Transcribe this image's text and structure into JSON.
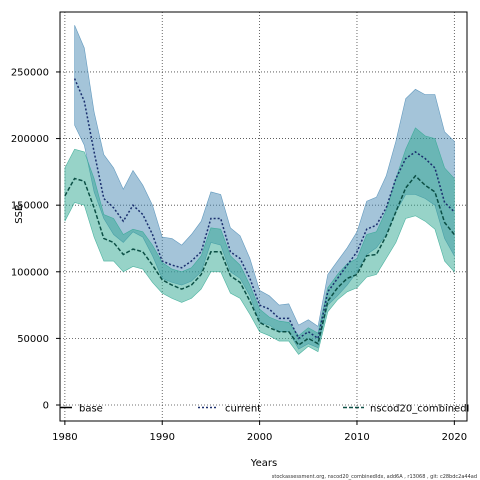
{
  "chart_data": {
    "type": "line",
    "title": "",
    "xlabel": "Years",
    "ylabel": "SSB",
    "xlim": [
      1979.5,
      2021.3
    ],
    "ylim": [
      -12000,
      295000
    ],
    "x_ticks": [
      1980,
      1990,
      2000,
      2010,
      2020
    ],
    "y_ticks": [
      0,
      50000,
      100000,
      150000,
      200000,
      250000
    ],
    "grid": true,
    "legend_position": "bottom",
    "colors": {
      "base": "#000000",
      "current": "#1a2f6e",
      "nscod20_combined": "#0b4f45",
      "current_band": "#4a8ab4",
      "combined_band": "#2fa891"
    },
    "series": [
      {
        "name": "base",
        "style": "solid",
        "x": [
          1980
        ],
        "values": [
          0
        ],
        "lower": [],
        "upper": []
      },
      {
        "name": "current",
        "style": "dotted",
        "x": [
          1981,
          1982,
          1983,
          1984,
          1985,
          1986,
          1987,
          1988,
          1989,
          1990,
          1991,
          1992,
          1993,
          1994,
          1995,
          1996,
          1997,
          1998,
          1999,
          2000,
          2001,
          2002,
          2003,
          2004,
          2005,
          2006,
          2007,
          2008,
          2009,
          2010,
          2011,
          2012,
          2013,
          2014,
          2015,
          2016,
          2017,
          2018,
          2019,
          2020
        ],
        "values": [
          245000,
          228000,
          190000,
          155000,
          148000,
          138000,
          150000,
          143000,
          128000,
          108000,
          105000,
          103000,
          108000,
          115000,
          140000,
          140000,
          115000,
          110000,
          95000,
          75000,
          72000,
          65000,
          65000,
          50000,
          55000,
          50000,
          85000,
          95000,
          105000,
          115000,
          132000,
          135000,
          148000,
          170000,
          185000,
          190000,
          185000,
          178000,
          152000,
          145000
        ],
        "lower": [
          210000,
          195000,
          160000,
          140000,
          128000,
          122000,
          130000,
          126000,
          112000,
          95000,
          92000,
          90000,
          93000,
          100000,
          122000,
          120000,
          100000,
          95000,
          82000,
          62000,
          60000,
          55000,
          55000,
          42000,
          46000,
          43000,
          75000,
          82000,
          90000,
          100000,
          113000,
          118000,
          128000,
          145000,
          158000,
          158000,
          155000,
          150000,
          125000,
          112000
        ],
        "upper": [
          285000,
          268000,
          220000,
          188000,
          178000,
          162000,
          176000,
          165000,
          150000,
          126000,
          125000,
          120000,
          128000,
          138000,
          160000,
          158000,
          133000,
          127000,
          110000,
          86000,
          82000,
          75000,
          76000,
          60000,
          64000,
          59000,
          98000,
          108000,
          118000,
          130000,
          153000,
          156000,
          172000,
          198000,
          230000,
          237000,
          233000,
          233000,
          205000,
          198000
        ]
      },
      {
        "name": "nscod20_combinedIdx",
        "style": "dashed",
        "x": [
          1980,
          1981,
          1982,
          1983,
          1984,
          1985,
          1986,
          1987,
          1988,
          1989,
          1990,
          1991,
          1992,
          1993,
          1994,
          1995,
          1996,
          1997,
          1998,
          1999,
          2000,
          2001,
          2002,
          2003,
          2004,
          2005,
          2006,
          2007,
          2008,
          2009,
          2010,
          2011,
          2012,
          2013,
          2014,
          2015,
          2016,
          2017,
          2018,
          2019,
          2020
        ],
        "values": [
          157000,
          170000,
          168000,
          148000,
          125000,
          122000,
          113000,
          117000,
          115000,
          105000,
          94000,
          90000,
          87000,
          90000,
          98000,
          115000,
          115000,
          97000,
          92000,
          78000,
          62000,
          58000,
          55000,
          55000,
          45000,
          50000,
          46000,
          78000,
          88000,
          95000,
          98000,
          112000,
          113000,
          127000,
          145000,
          163000,
          172000,
          165000,
          160000,
          137000,
          128000
        ],
        "lower": [
          138000,
          152000,
          150000,
          126000,
          108000,
          108000,
          100000,
          104000,
          102000,
          92000,
          84000,
          80000,
          77000,
          80000,
          87000,
          100000,
          100000,
          84000,
          80000,
          68000,
          55000,
          52000,
          48000,
          48000,
          38000,
          44000,
          40000,
          70000,
          79000,
          85000,
          88000,
          96000,
          98000,
          110000,
          122000,
          140000,
          142000,
          138000,
          132000,
          108000,
          100000
        ],
        "upper": [
          178000,
          192000,
          190000,
          170000,
          143000,
          140000,
          128000,
          132000,
          130000,
          120000,
          107000,
          102000,
          100000,
          103000,
          112000,
          133000,
          132000,
          112000,
          105000,
          90000,
          72000,
          66000,
          63000,
          62000,
          52000,
          58000,
          54000,
          88000,
          98000,
          106000,
          110000,
          128000,
          130000,
          146000,
          170000,
          192000,
          208000,
          202000,
          200000,
          178000,
          170000
        ]
      }
    ]
  },
  "legend": {
    "base_label": "base",
    "current_label": "current",
    "combined_label": "nscod20_combinedI"
  },
  "footer": {
    "text": "stockassessment.org, nscod20_combinedIdx, add6A , r13068 , git: c28bdc2a44ad"
  }
}
